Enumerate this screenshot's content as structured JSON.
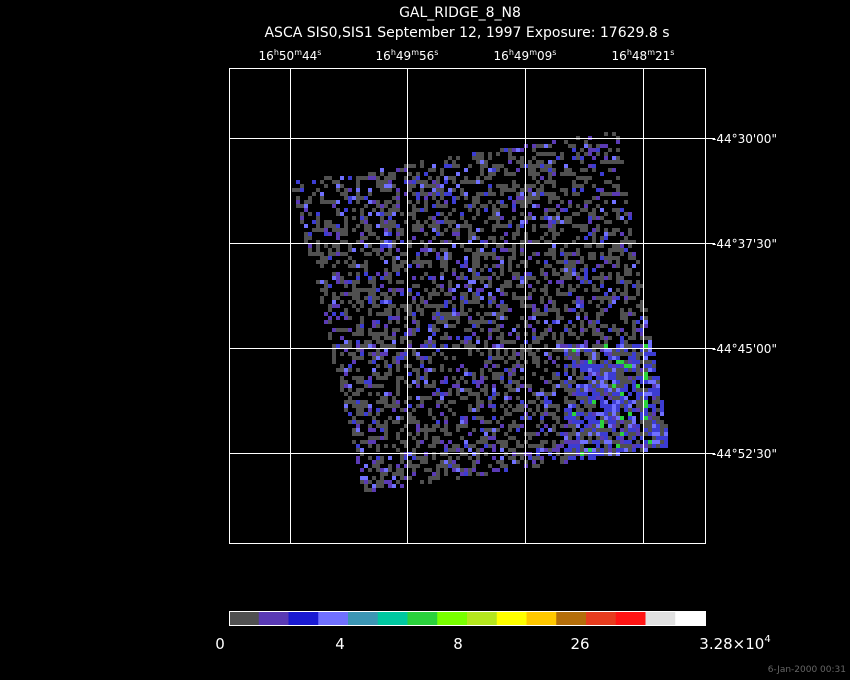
{
  "header": {
    "title": "GAL_RIDGE_8_N8",
    "subtitle": "ASCA SIS0,SIS1 September 12, 1997 Exposure: 17629.8 s"
  },
  "ra_labels": [
    [
      "16",
      "h",
      "50",
      "m",
      "44",
      "s"
    ],
    [
      "16",
      "h",
      "49",
      "m",
      "56",
      "s"
    ],
    [
      "16",
      "h",
      "49",
      "m",
      "09",
      "s"
    ],
    [
      "16",
      "h",
      "48",
      "m",
      "21",
      "s"
    ]
  ],
  "dec_labels": [
    "-44°30'00\"",
    "-44°37'30\"",
    "-44°45'00\"",
    "-44°52'30\""
  ],
  "colorbar": {
    "colors": [
      "#505050",
      "#5a3ab4",
      "#1a1ad2",
      "#7070ff",
      "#3c96b4",
      "#00c8a0",
      "#2ad23c",
      "#78ff00",
      "#b4e61e",
      "#ffff00",
      "#ffc800",
      "#b46e0a",
      "#e63c1e",
      "#ff1414",
      "#e1e1e1",
      "#ffffff"
    ],
    "labels": [
      [
        "0"
      ],
      [
        "4"
      ],
      [
        "8"
      ],
      [
        "26"
      ],
      [
        "3.28×10",
        "4"
      ]
    ]
  },
  "footer": {
    "timestamp": "6-Jan-2000 00:31"
  }
}
